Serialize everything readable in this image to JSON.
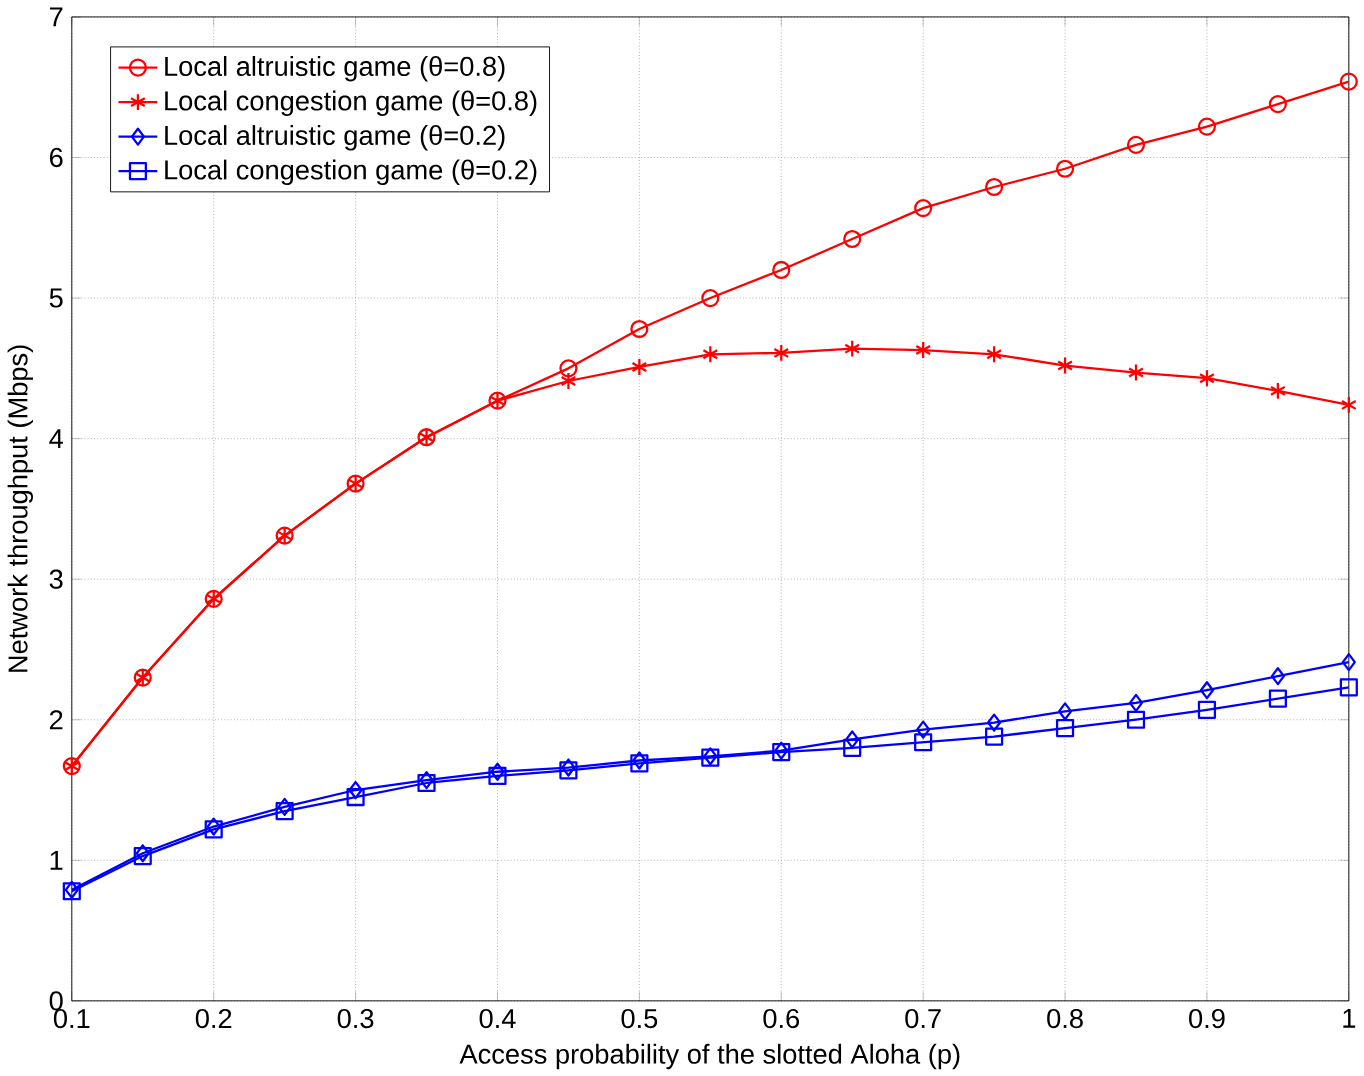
{
  "chart_data": {
    "type": "line",
    "xlabel": "Access probability of the slotted Aloha (p)",
    "ylabel": "Network throughput (Mbps)",
    "x": [
      0.1,
      0.15,
      0.2,
      0.25,
      0.3,
      0.35,
      0.4,
      0.45,
      0.5,
      0.55,
      0.6,
      0.65,
      0.7,
      0.75,
      0.8,
      0.85,
      0.9,
      0.95,
      1
    ],
    "xlim": [
      0.1,
      1
    ],
    "ylim": [
      0,
      7
    ],
    "xticks": [
      0.1,
      0.2,
      0.3,
      0.4,
      0.5,
      0.6,
      0.7,
      0.8,
      0.9,
      1
    ],
    "yticks": [
      0,
      1,
      2,
      3,
      4,
      5,
      6,
      7
    ],
    "grid": true,
    "legend": "top left",
    "line_style": "solid",
    "series": [
      {
        "name": "Local altruistic game (θ=0.8)",
        "color": "#ff0000",
        "marker": "circle",
        "values": [
          1.67,
          2.3,
          2.86,
          3.31,
          3.68,
          4.01,
          4.27,
          4.5,
          4.78,
          5.0,
          5.2,
          5.42,
          5.64,
          5.79,
          5.92,
          6.09,
          6.22,
          6.38,
          6.54
        ]
      },
      {
        "name": "Local congestion game (θ=0.8)",
        "color": "#ff0000",
        "marker": "cross",
        "values": [
          1.67,
          2.3,
          2.86,
          3.31,
          3.68,
          4.01,
          4.27,
          4.41,
          4.51,
          4.6,
          4.61,
          4.64,
          4.63,
          4.6,
          4.52,
          4.47,
          4.43,
          4.34,
          4.24
        ]
      },
      {
        "name": "Local altruistic game (θ=0.2)",
        "color": "#0000ff",
        "marker": "diamond",
        "values": [
          0.79,
          1.05,
          1.24,
          1.38,
          1.5,
          1.57,
          1.63,
          1.66,
          1.71,
          1.74,
          1.78,
          1.86,
          1.93,
          1.98,
          2.06,
          2.12,
          2.21,
          2.31,
          2.41
        ]
      },
      {
        "name": "Local congestion game (θ=0.2)",
        "color": "#0000ff",
        "marker": "square",
        "values": [
          0.78,
          1.03,
          1.22,
          1.35,
          1.45,
          1.55,
          1.6,
          1.64,
          1.69,
          1.73,
          1.77,
          1.8,
          1.84,
          1.88,
          1.94,
          2.0,
          2.07,
          2.15,
          2.23
        ]
      }
    ]
  }
}
